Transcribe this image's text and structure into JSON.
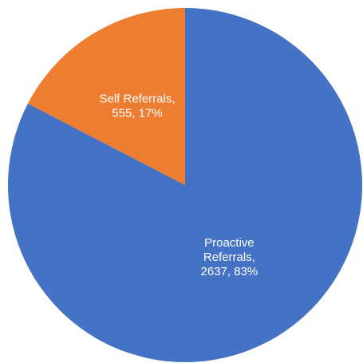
{
  "chart_data": {
    "type": "pie",
    "title": "",
    "slices": [
      {
        "name": "Proactive Referrals",
        "value": 2637,
        "percent": 83,
        "color": "#4472C4",
        "label_lines": [
          "Proactive",
          "Referrals,",
          "2637, 83%"
        ]
      },
      {
        "name": "Self Referrals",
        "value": 555,
        "percent": 17,
        "color": "#ED7D31",
        "label_lines": [
          "Self Referrals,",
          "555, 17%"
        ]
      }
    ],
    "start_angle_deg": 0,
    "direction": "clockwise",
    "legend": "none"
  }
}
